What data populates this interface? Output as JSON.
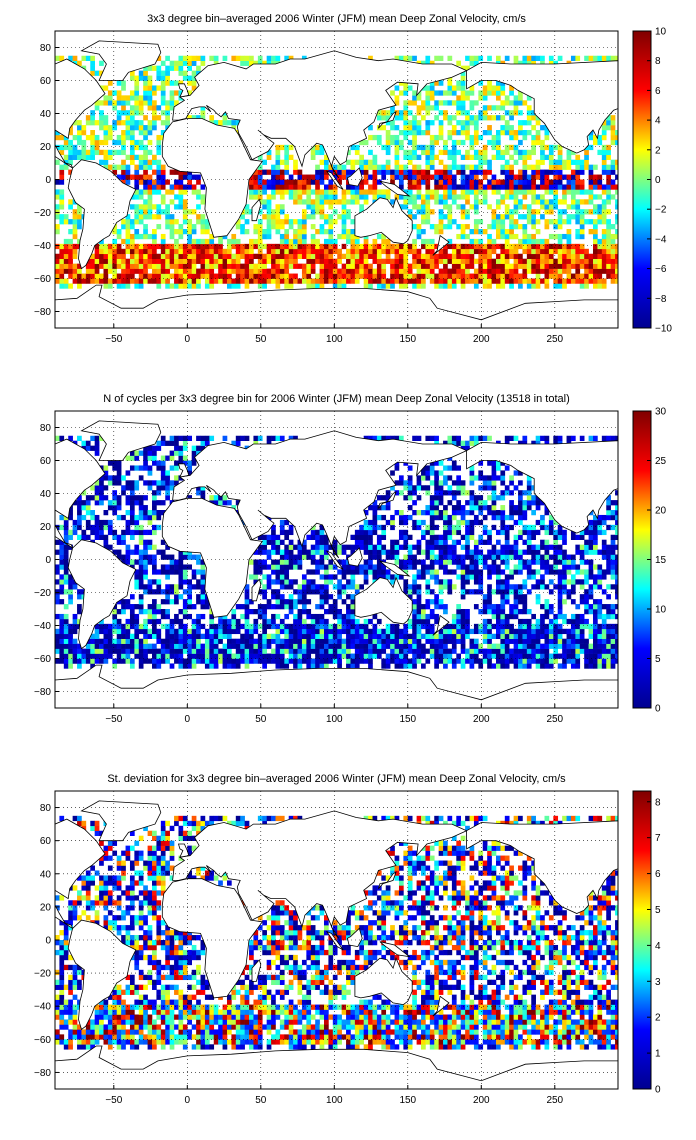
{
  "chart_data": [
    {
      "type": "heatmap",
      "title": "3x3 degree bin–averaged 2006 Winter (JFM) mean Deep Zonal Velocity, cm/s",
      "xlabel": "",
      "ylabel": "",
      "xlim": [
        -90,
        293
      ],
      "ylim": [
        -90,
        90
      ],
      "x_ticks": [
        -50,
        0,
        50,
        100,
        150,
        200,
        250
      ],
      "y_ticks": [
        -80,
        -60,
        -40,
        -20,
        0,
        20,
        40,
        60,
        80
      ],
      "grid": true,
      "bin_size_deg": 3,
      "colorbar": {
        "min": -10,
        "max": 10,
        "ticks": [
          -10,
          -8,
          -6,
          -4,
          -2,
          0,
          2,
          4,
          6,
          8,
          10
        ]
      },
      "colormap": [
        "#00008f",
        "#0000ff",
        "#00ffff",
        "#ffff00",
        "#ff0000",
        "#800000"
      ],
      "land_color": "#ffffff",
      "coast_color": "#000000",
      "field": "velocity"
    },
    {
      "type": "heatmap",
      "title": "N of cycles per 3x3 degree bin for 2006 Winter (JFM) mean Deep Zonal Velocity (13518 in total)",
      "xlabel": "",
      "ylabel": "",
      "xlim": [
        -90,
        293
      ],
      "ylim": [
        -90,
        90
      ],
      "x_ticks": [
        -50,
        0,
        50,
        100,
        150,
        200,
        250
      ],
      "y_ticks": [
        -80,
        -60,
        -40,
        -20,
        0,
        20,
        40,
        60,
        80
      ],
      "grid": true,
      "bin_size_deg": 3,
      "total_cycles": 13518,
      "colorbar": {
        "min": 0,
        "max": 30,
        "ticks": [
          0,
          5,
          10,
          15,
          20,
          25,
          30
        ]
      },
      "colormap": [
        "#00008f",
        "#0000ff",
        "#00ffff",
        "#ffff00",
        "#ff0000",
        "#800000"
      ],
      "land_color": "#ffffff",
      "coast_color": "#000000",
      "field": "count"
    },
    {
      "type": "heatmap",
      "title": "St. deviation for 3x3 degree bin–averaged 2006 Winter (JFM) mean Deep Zonal Velocity, cm/s",
      "xlabel": "",
      "ylabel": "",
      "xlim": [
        -90,
        293
      ],
      "ylim": [
        -90,
        90
      ],
      "x_ticks": [
        -50,
        0,
        50,
        100,
        150,
        200,
        250
      ],
      "y_ticks": [
        -80,
        -60,
        -40,
        -20,
        0,
        20,
        40,
        60,
        80
      ],
      "grid": true,
      "bin_size_deg": 3,
      "colorbar": {
        "min": 0,
        "max": 8.3,
        "ticks": [
          0,
          1,
          2,
          3,
          4,
          5,
          6,
          7,
          8
        ]
      },
      "colormap": [
        "#00008f",
        "#0000ff",
        "#00ffff",
        "#ffff00",
        "#ff0000",
        "#800000"
      ],
      "land_color": "#ffffff",
      "coast_color": "#000000",
      "field": "std"
    }
  ]
}
